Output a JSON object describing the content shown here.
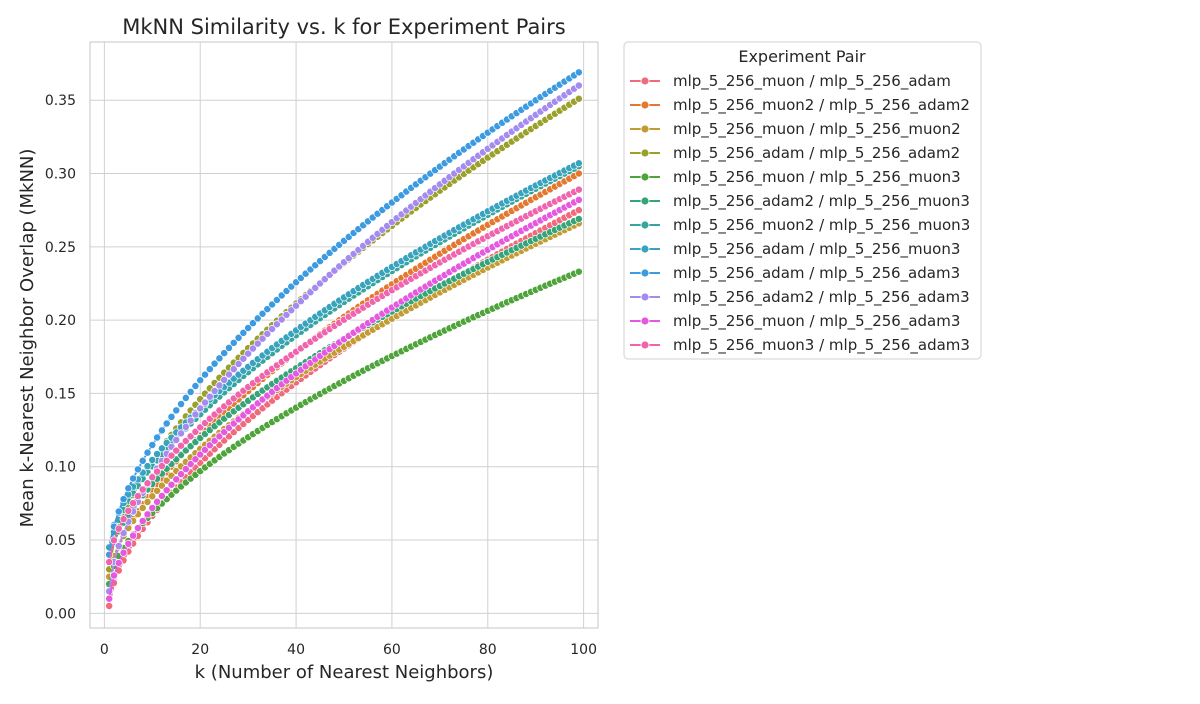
{
  "chart_data": {
    "type": "line",
    "title": "MkNN Similarity vs. k for Experiment Pairs",
    "xlabel": "k (Number of Nearest Neighbors)",
    "ylabel": "Mean k-Nearest Neighbor Overlap (MkNN)",
    "xlim": [
      -3,
      103
    ],
    "ylim": [
      -0.01,
      0.3897
    ],
    "xticks": [
      0,
      20,
      40,
      60,
      80,
      100
    ],
    "yticks": [
      0.0,
      0.05,
      0.1,
      0.15,
      0.2,
      0.25,
      0.3,
      0.35
    ],
    "ytick_labels": [
      "0.00",
      "0.05",
      "0.10",
      "0.15",
      "0.20",
      "0.25",
      "0.30",
      "0.35"
    ],
    "grid": true,
    "legend_placement": "outside upper right",
    "legend_title": "Experiment Pair",
    "x_range": [
      1,
      99
    ],
    "series": [
      {
        "name": "mlp_5_256_muon / mlp_5_256_adam",
        "color": "#f0697d",
        "k1": 0.005,
        "k99": 0.275
      },
      {
        "name": "mlp_5_256_muon2 / mlp_5_256_adam2",
        "color": "#e4782f",
        "k1": 0.02,
        "k99": 0.3
      },
      {
        "name": "mlp_5_256_muon / mlp_5_256_muon2",
        "color": "#c29b32",
        "k1": 0.025,
        "k99": 0.266
      },
      {
        "name": "mlp_5_256_adam / mlp_5_256_adam2",
        "color": "#9aa02a",
        "k1": 0.03,
        "k99": 0.351
      },
      {
        "name": "mlp_5_256_muon / mlp_5_256_muon3",
        "color": "#4ea43a",
        "k1": 0.02,
        "k99": 0.233
      },
      {
        "name": "mlp_5_256_adam2 / mlp_5_256_muon3",
        "color": "#36a479",
        "k1": 0.035,
        "k99": 0.269
      },
      {
        "name": "mlp_5_256_muon2 / mlp_5_256_muon3",
        "color": "#36a5a0",
        "k1": 0.04,
        "k99": 0.305
      },
      {
        "name": "mlp_5_256_adam / mlp_5_256_muon3",
        "color": "#39a3bf",
        "k1": 0.045,
        "k99": 0.307
      },
      {
        "name": "mlp_5_256_adam / mlp_5_256_adam3",
        "color": "#3c9be0",
        "k1": 0.04,
        "k99": 0.369
      },
      {
        "name": "mlp_5_256_adam2 / mlp_5_256_adam3",
        "color": "#a48bf0",
        "k1": 0.015,
        "k99": 0.36
      },
      {
        "name": "mlp_5_256_muon / mlp_5_256_adam3",
        "color": "#e558e0",
        "k1": 0.01,
        "k99": 0.282
      },
      {
        "name": "mlp_5_256_muon3 / mlp_5_256_adam3",
        "color": "#f064ae",
        "k1": 0.035,
        "k99": 0.289
      }
    ]
  }
}
